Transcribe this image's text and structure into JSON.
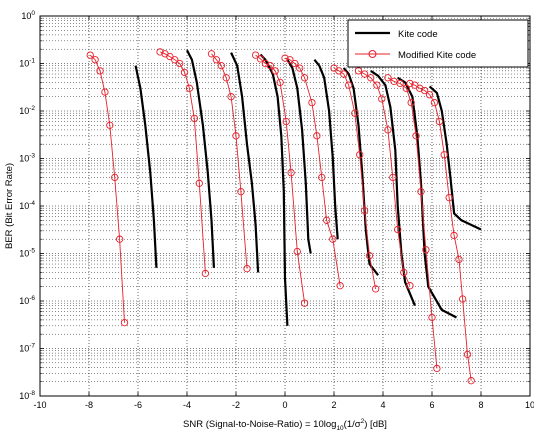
{
  "chart_data": {
    "type": "line",
    "xlabel": "SNR (Signal-to-Noise-Ratio) = 10log",
    "xlabel_sub": "10",
    "xlabel_paren": "(1/σ",
    "xlabel_sup": "2",
    "xlabel_end": ") [dB]",
    "ylabel": "BER (Bit Error Rate)",
    "xlim": [
      -10,
      10
    ],
    "ylim": [
      1e-08,
      1
    ],
    "yscale": "log",
    "grid": true,
    "legend_position": "top-right",
    "x_ticks": [
      {
        "value": -10,
        "label": "-10"
      },
      {
        "value": -8,
        "label": "-8"
      },
      {
        "value": -6,
        "label": "-6"
      },
      {
        "value": -4,
        "label": "-4"
      },
      {
        "value": -2,
        "label": "-2"
      },
      {
        "value": 0,
        "label": "0"
      },
      {
        "value": 2,
        "label": "2"
      },
      {
        "value": 4,
        "label": "4"
      },
      {
        "value": 6,
        "label": "6"
      },
      {
        "value": 8,
        "label": "8"
      },
      {
        "value": 10,
        "label": "10"
      }
    ],
    "y_ticks": [
      {
        "exp": 0,
        "base": "10",
        "sup": "0"
      },
      {
        "exp": -1,
        "base": "10",
        "sup": "-1"
      },
      {
        "exp": -2,
        "base": "10",
        "sup": "-2"
      },
      {
        "exp": -3,
        "base": "10",
        "sup": "-3"
      },
      {
        "exp": -4,
        "base": "10",
        "sup": "-4"
      },
      {
        "exp": -5,
        "base": "10",
        "sup": "-5"
      },
      {
        "exp": -6,
        "base": "10",
        "sup": "-6"
      },
      {
        "exp": -7,
        "base": "10",
        "sup": "-7"
      },
      {
        "exp": -8,
        "base": "10",
        "sup": "-8"
      }
    ],
    "series": [
      {
        "name": "Kite code",
        "color": "#000000",
        "marker": "none",
        "curves": [
          [
            [
              -6.1,
              0.09
            ],
            [
              -5.9,
              0.03
            ],
            [
              -5.7,
              0.005
            ],
            [
              -5.5,
              0.0005
            ],
            [
              -5.35,
              5e-05
            ],
            [
              -5.25,
              5e-06
            ]
          ],
          [
            [
              -4.0,
              0.19
            ],
            [
              -3.8,
              0.12
            ],
            [
              -3.6,
              0.04
            ],
            [
              -3.35,
              0.005
            ],
            [
              -3.15,
              0.0005
            ],
            [
              -3.0,
              5e-05
            ],
            [
              -2.9,
              5e-06
            ]
          ],
          [
            [
              -2.2,
              0.17
            ],
            [
              -1.95,
              0.09
            ],
            [
              -1.75,
              0.02
            ],
            [
              -1.55,
              0.002
            ],
            [
              -1.35,
              0.0003
            ],
            [
              -1.2,
              4e-05
            ],
            [
              -1.1,
              4e-06
            ]
          ],
          [
            [
              -1.0,
              0.155
            ],
            [
              -0.8,
              0.12
            ],
            [
              -0.5,
              0.06
            ],
            [
              -0.3,
              0.02
            ],
            [
              -0.15,
              0.003
            ],
            [
              -0.05,
              0.0002
            ],
            [
              0.0,
              3e-06
            ],
            [
              0.1,
              3e-07
            ]
          ],
          [
            [
              0.1,
              0.12
            ],
            [
              0.3,
              0.08
            ],
            [
              0.5,
              0.03
            ],
            [
              0.7,
              0.004
            ],
            [
              0.85,
              0.0003
            ],
            [
              0.95,
              2e-05
            ],
            [
              1.05,
              1e-05
            ]
          ],
          [
            [
              1.2,
              0.12
            ],
            [
              1.4,
              0.09
            ],
            [
              1.6,
              0.05
            ],
            [
              1.8,
              0.01
            ],
            [
              1.95,
              0.001
            ],
            [
              2.05,
              0.0001
            ],
            [
              2.15,
              2e-05
            ]
          ],
          [
            [
              2.4,
              0.08
            ],
            [
              2.6,
              0.06
            ],
            [
              2.8,
              0.03
            ],
            [
              3.0,
              0.005
            ],
            [
              3.15,
              0.0005
            ],
            [
              3.3,
              3e-05
            ],
            [
              3.45,
              6e-06
            ],
            [
              3.8,
              3.5e-06
            ]
          ],
          [
            [
              3.5,
              0.07
            ],
            [
              3.8,
              0.055
            ],
            [
              4.1,
              0.035
            ],
            [
              4.3,
              0.012
            ],
            [
              4.5,
              0.0015
            ],
            [
              4.6,
              0.0001
            ],
            [
              4.75,
              1e-05
            ],
            [
              4.9,
              2.5e-06
            ],
            [
              5.3,
              8e-07
            ]
          ],
          [
            [
              4.6,
              0.05
            ],
            [
              4.9,
              0.04
            ],
            [
              5.2,
              0.02
            ],
            [
              5.4,
              0.003
            ],
            [
              5.55,
              0.0003
            ],
            [
              5.7,
              1e-05
            ],
            [
              5.85,
              2e-06
            ],
            [
              6.4,
              6.5e-07
            ],
            [
              7.0,
              4.5e-07
            ]
          ],
          [
            [
              5.9,
              0.033
            ],
            [
              6.2,
              0.024
            ],
            [
              6.4,
              0.01
            ],
            [
              6.6,
              0.002
            ],
            [
              6.75,
              0.0004
            ],
            [
              6.9,
              7e-05
            ],
            [
              7.2,
              5e-05
            ],
            [
              7.6,
              4e-05
            ],
            [
              8.0,
              3.2e-05
            ]
          ]
        ]
      },
      {
        "name": "Modified Kite code",
        "color": "#e8202a",
        "marker": "circle",
        "curves": [
          [
            [
              -7.95,
              0.15
            ],
            [
              -7.75,
              0.12
            ],
            [
              -7.55,
              0.07
            ],
            [
              -7.35,
              0.025
            ],
            [
              -7.15,
              0.005
            ],
            [
              -6.95,
              0.0004
            ],
            [
              -6.75,
              2e-05
            ],
            [
              -6.55,
              3.5e-07
            ]
          ],
          [
            [
              -5.1,
              0.175
            ],
            [
              -4.9,
              0.16
            ],
            [
              -4.7,
              0.14
            ],
            [
              -4.5,
              0.12
            ],
            [
              -4.3,
              0.1
            ],
            [
              -4.1,
              0.065
            ],
            [
              -3.9,
              0.03
            ],
            [
              -3.7,
              0.007
            ],
            [
              -3.5,
              0.0003
            ],
            [
              -3.25,
              3.8e-06
            ]
          ],
          [
            [
              -3.0,
              0.16
            ],
            [
              -2.8,
              0.12
            ],
            [
              -2.6,
              0.09
            ],
            [
              -2.4,
              0.05
            ],
            [
              -2.2,
              0.02
            ],
            [
              -2.0,
              0.003
            ],
            [
              -1.8,
              0.0002
            ],
            [
              -1.55,
              4.8e-06
            ]
          ],
          [
            [
              -1.2,
              0.15
            ],
            [
              -1.0,
              0.125
            ],
            [
              -0.8,
              0.1
            ],
            [
              -0.6,
              0.09
            ],
            [
              -0.4,
              0.07
            ],
            [
              -0.2,
              0.04
            ],
            [
              0.05,
              0.006
            ],
            [
              0.25,
              0.0005
            ],
            [
              0.5,
              1.1e-05
            ],
            [
              0.8,
              9e-07
            ]
          ],
          [
            [
              0.0,
              0.13
            ],
            [
              0.2,
              0.12
            ],
            [
              0.4,
              0.1
            ],
            [
              0.6,
              0.08
            ],
            [
              0.8,
              0.05
            ],
            [
              1.1,
              0.015
            ],
            [
              1.3,
              0.003
            ],
            [
              1.5,
              0.0004
            ],
            [
              1.7,
              5e-05
            ],
            [
              1.95,
              2e-05
            ],
            [
              2.25,
              2.1e-06
            ]
          ],
          [
            [
              2.0,
              0.08
            ],
            [
              2.2,
              0.07
            ],
            [
              2.4,
              0.06
            ],
            [
              2.6,
              0.035
            ],
            [
              2.85,
              0.009
            ],
            [
              3.05,
              0.0012
            ],
            [
              3.25,
              8e-05
            ],
            [
              3.45,
              9e-06
            ],
            [
              3.7,
              1.8e-06
            ]
          ],
          [
            [
              3.0,
              0.07
            ],
            [
              3.25,
              0.06
            ],
            [
              3.5,
              0.05
            ],
            [
              3.75,
              0.035
            ],
            [
              3.95,
              0.018
            ],
            [
              4.2,
              0.004
            ],
            [
              4.4,
              0.0004
            ],
            [
              4.6,
              3.2e-05
            ],
            [
              4.85,
              4e-06
            ],
            [
              5.1,
              2.1e-06
            ]
          ],
          [
            [
              4.2,
              0.05
            ],
            [
              4.45,
              0.042
            ],
            [
              4.7,
              0.038
            ],
            [
              4.95,
              0.03
            ],
            [
              5.15,
              0.015
            ],
            [
              5.35,
              0.003
            ],
            [
              5.55,
              0.0002
            ],
            [
              5.75,
              1.2e-05
            ],
            [
              6.0,
              4.5e-07
            ],
            [
              6.2,
              3.8e-08
            ]
          ],
          [
            [
              5.1,
              0.038
            ],
            [
              5.3,
              0.035
            ],
            [
              5.5,
              0.03
            ],
            [
              5.7,
              0.027
            ],
            [
              5.9,
              0.022
            ],
            [
              6.1,
              0.015
            ],
            [
              6.3,
              0.006
            ],
            [
              6.5,
              0.0012
            ],
            [
              6.7,
              0.00015
            ],
            [
              6.9,
              2.4e-05
            ],
            [
              7.1,
              7.5e-06
            ],
            [
              7.25,
              1.1e-06
            ],
            [
              7.45,
              7.5e-08
            ],
            [
              7.6,
              2.1e-08
            ]
          ]
        ]
      }
    ]
  }
}
